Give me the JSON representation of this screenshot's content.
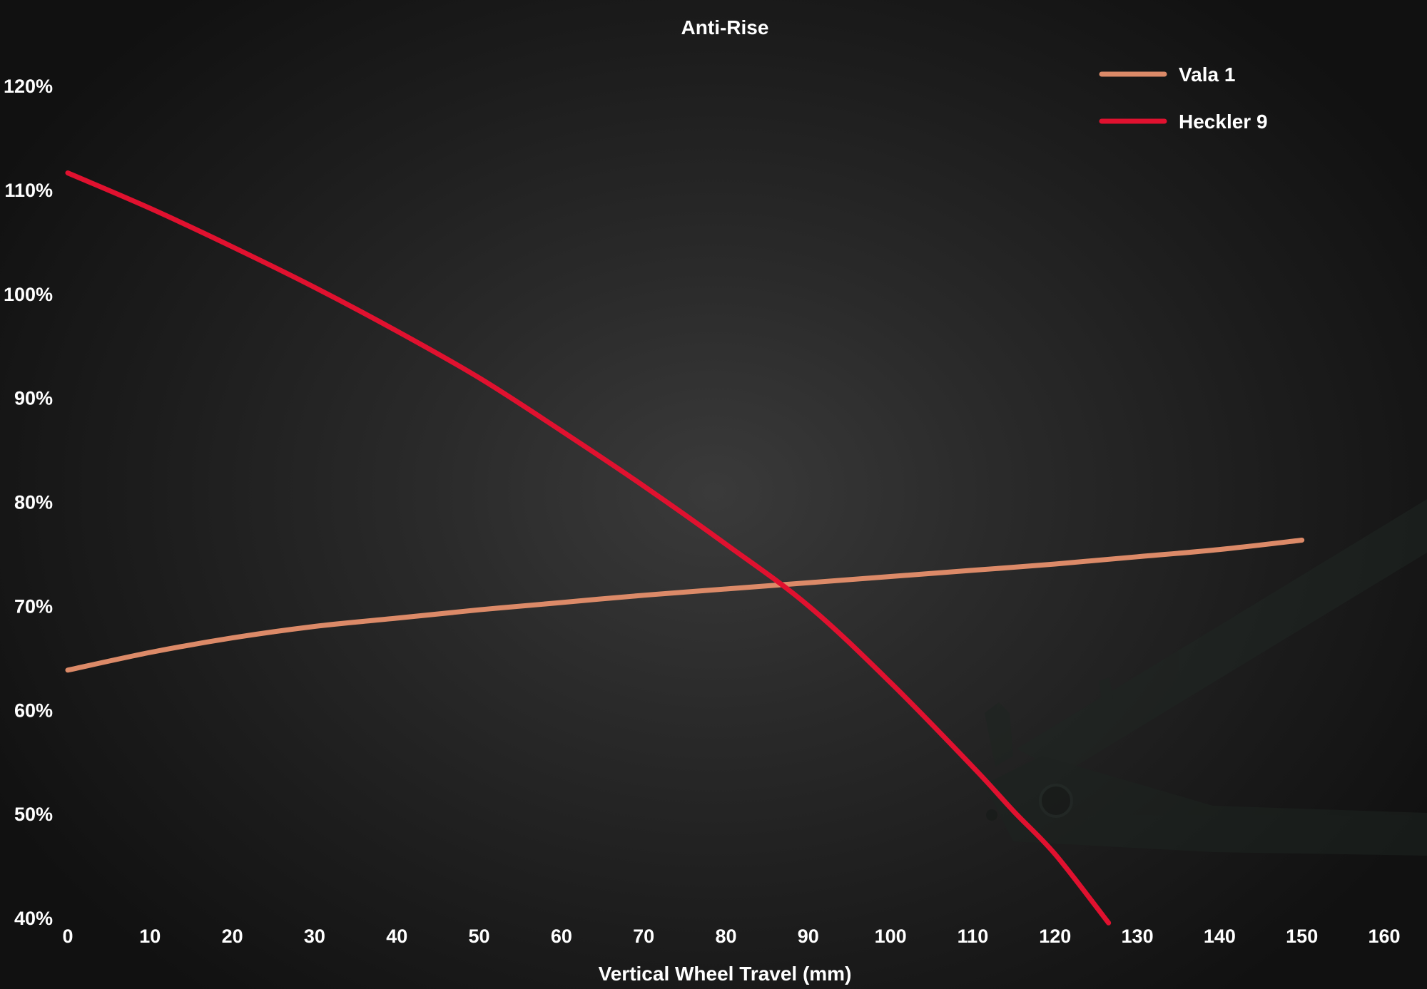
{
  "chart_data": {
    "type": "line",
    "title": "Anti-Rise",
    "xlabel": "Vertical Wheel Travel (mm)",
    "ylabel": "",
    "xlim": [
      0,
      160
    ],
    "ylim": [
      40,
      120
    ],
    "x_ticks": [
      "0",
      "10",
      "20",
      "30",
      "40",
      "50",
      "60",
      "70",
      "80",
      "90",
      "100",
      "110",
      "120",
      "130",
      "140",
      "150",
      "160"
    ],
    "y_ticks": [
      "120%",
      "110%",
      "100%",
      "90%",
      "80%",
      "70%",
      "60%",
      "50%",
      "40%"
    ],
    "grid": false,
    "legend_position": "top-right",
    "series": [
      {
        "name": "Vala 1",
        "color": "#dc8a68",
        "x": [
          0,
          10,
          20,
          30,
          40,
          50,
          60,
          70,
          80,
          90,
          100,
          110,
          120,
          130,
          140,
          150
        ],
        "y": [
          63.8,
          65.5,
          66.9,
          68.0,
          68.8,
          69.6,
          70.3,
          71.0,
          71.6,
          72.2,
          72.8,
          73.4,
          74.0,
          74.7,
          75.4,
          76.3
        ]
      },
      {
        "name": "Heckler 9",
        "color": "#e0112f",
        "x": [
          0,
          10,
          20,
          30,
          40,
          50,
          60,
          70,
          80,
          90,
          100,
          110,
          115,
          120,
          126.5
        ],
        "y": [
          111.6,
          108.2,
          104.5,
          100.6,
          96.4,
          91.9,
          86.8,
          81.5,
          75.9,
          70.0,
          62.6,
          54.5,
          50.2,
          46.1,
          39.5
        ]
      }
    ]
  }
}
